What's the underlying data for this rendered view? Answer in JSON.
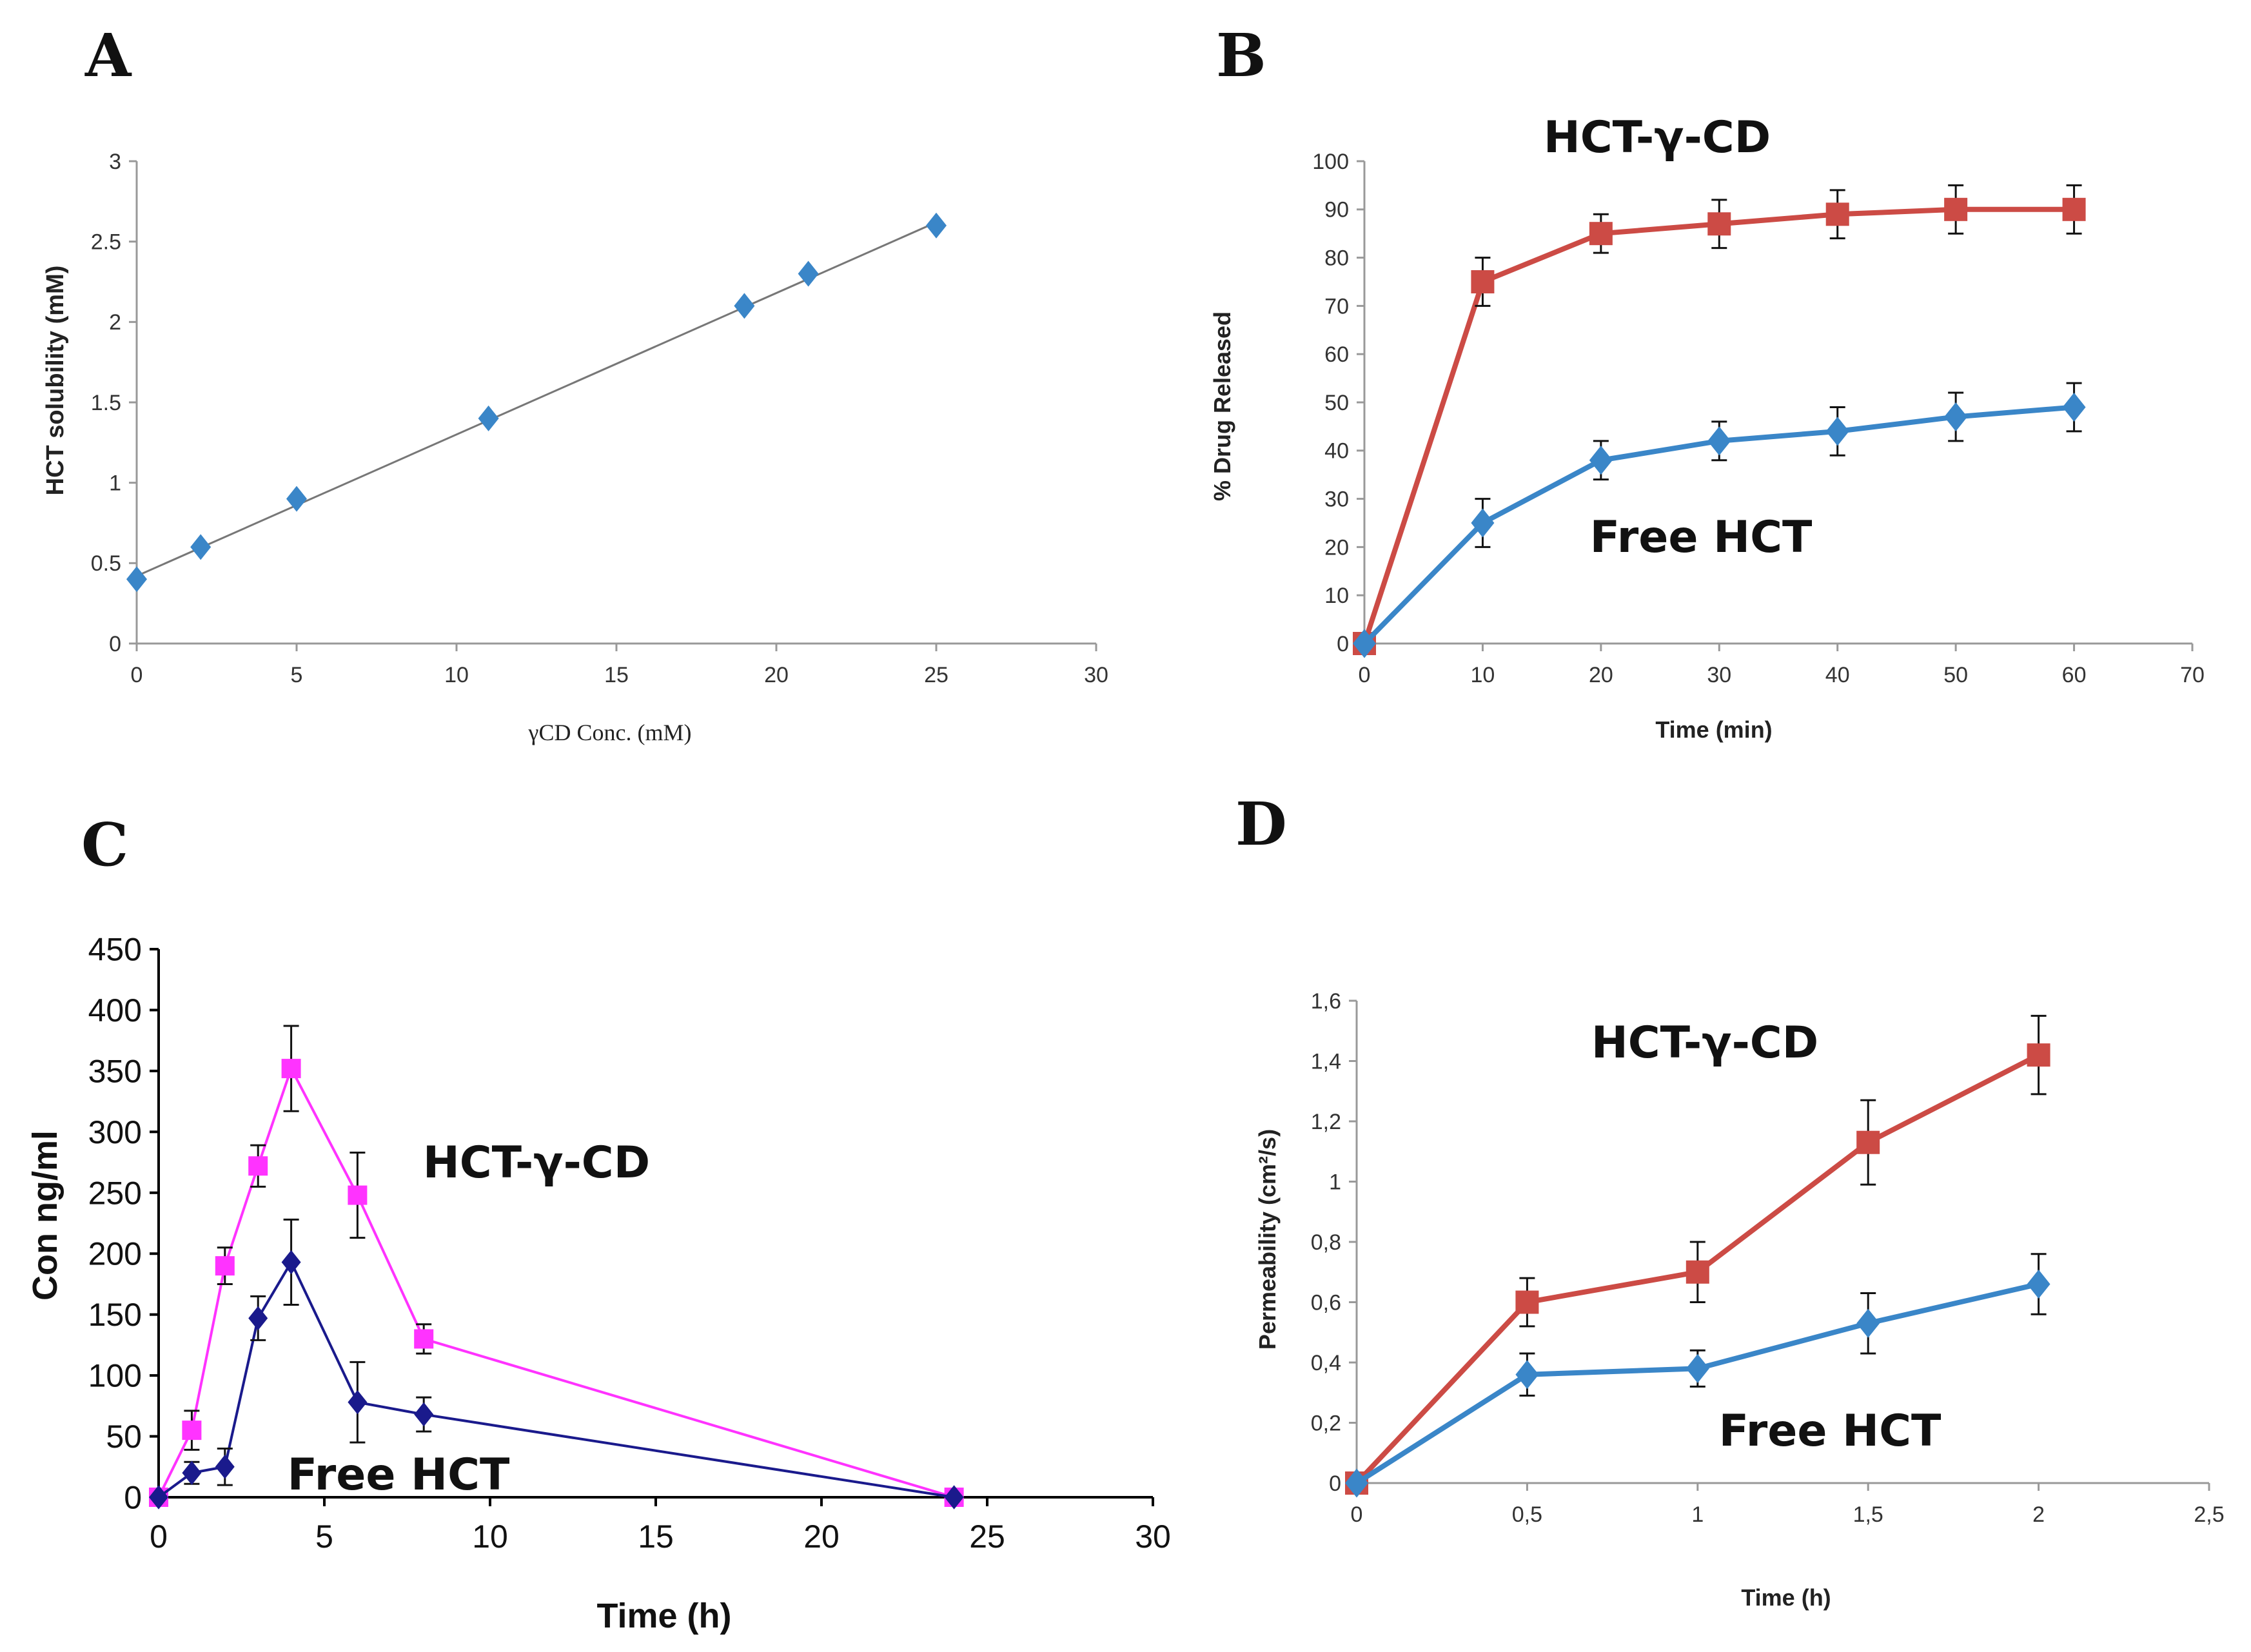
{
  "figure": {
    "panels": [
      "A",
      "B",
      "C",
      "D"
    ]
  },
  "colors": {
    "blue": "#3a86c8",
    "red": "#cc4b45",
    "magenta": "#ff33ff",
    "navy": "#1a1a8c",
    "regression": "#777777"
  },
  "chart_data": [
    {
      "panel": "A",
      "type": "scatter",
      "title": "",
      "xlabel": "γCD Conc. (mM)",
      "ylabel": "HCT solubility  (mM)",
      "xlim": [
        0,
        30
      ],
      "ylim": [
        0,
        3
      ],
      "xticks": [
        "0",
        "5",
        "10",
        "15",
        "20",
        "25",
        "30"
      ],
      "yticks": [
        "0",
        "0.5",
        "1",
        "1.5",
        "2",
        "2.5",
        "3"
      ],
      "series": [
        {
          "name": "HCT solubility",
          "marker": "diamond",
          "x": [
            0,
            2,
            5,
            11,
            19,
            21,
            25
          ],
          "y": [
            0.4,
            0.6,
            0.9,
            1.4,
            2.1,
            2.3,
            2.6
          ]
        }
      ],
      "trendline": {
        "x": [
          0,
          25
        ],
        "y": [
          0.42,
          2.62
        ]
      }
    },
    {
      "panel": "B",
      "type": "line",
      "title": "",
      "xlabel": "Time (min)",
      "ylabel": "% Drug Released",
      "xlim": [
        0,
        70
      ],
      "ylim": [
        0,
        100
      ],
      "xticks": [
        "0",
        "10",
        "20",
        "30",
        "40",
        "50",
        "60",
        "70"
      ],
      "yticks": [
        "0",
        "10",
        "20",
        "30",
        "40",
        "50",
        "60",
        "70",
        "80",
        "90",
        "100"
      ],
      "annotations": [
        "HCT-γ-CD",
        "Free HCT"
      ],
      "series": [
        {
          "name": "HCT-γ-CD",
          "marker": "square",
          "x": [
            0,
            10,
            20,
            30,
            40,
            50,
            60
          ],
          "y": [
            0,
            75,
            85,
            87,
            89,
            90,
            90
          ],
          "err": [
            0,
            5,
            4,
            5,
            5,
            5,
            5
          ]
        },
        {
          "name": "Free HCT",
          "marker": "diamond",
          "x": [
            0,
            10,
            20,
            30,
            40,
            50,
            60
          ],
          "y": [
            0,
            25,
            38,
            42,
            44,
            47,
            49
          ],
          "err": [
            0,
            5,
            4,
            4,
            5,
            5,
            5
          ]
        }
      ]
    },
    {
      "panel": "C",
      "type": "line",
      "title": "",
      "xlabel": "Time (h)",
      "ylabel": "Con ng/ml",
      "xlim": [
        0,
        30
      ],
      "ylim": [
        0,
        450
      ],
      "xticks": [
        "0",
        "5",
        "10",
        "15",
        "20",
        "25",
        "30"
      ],
      "yticks": [
        "0",
        "50",
        "100",
        "150",
        "200",
        "250",
        "300",
        "350",
        "400",
        "450"
      ],
      "annotations": [
        "HCT-γ-CD",
        "Free HCT"
      ],
      "series": [
        {
          "name": "HCT-γ-CD",
          "marker": "square",
          "x": [
            0,
            1,
            2,
            3,
            4,
            6,
            8,
            24
          ],
          "y": [
            0,
            55,
            190,
            272,
            352,
            248,
            130,
            0
          ],
          "err": [
            0,
            16,
            15,
            17,
            35,
            35,
            12,
            0
          ]
        },
        {
          "name": "Free HCT",
          "marker": "diamond",
          "x": [
            0,
            1,
            2,
            3,
            4,
            6,
            8,
            24
          ],
          "y": [
            0,
            20,
            25,
            147,
            193,
            78,
            68,
            0
          ],
          "err": [
            0,
            9,
            15,
            18,
            35,
            33,
            14,
            0
          ]
        }
      ]
    },
    {
      "panel": "D",
      "type": "line",
      "title": "",
      "xlabel": "Time (h)",
      "ylabel": "Permeability (cm²/s)",
      "xlim": [
        0,
        2.5
      ],
      "ylim": [
        0,
        1.6
      ],
      "xticks": [
        "0",
        "0,5",
        "1",
        "1,5",
        "2",
        "2,5"
      ],
      "yticks": [
        "0",
        "0,2",
        "0,4",
        "0,6",
        "0,8",
        "1",
        "1,2",
        "1,4",
        "1,6"
      ],
      "annotations": [
        "HCT-γ-CD",
        "Free HCT"
      ],
      "series": [
        {
          "name": "HCT-γ-CD",
          "marker": "square",
          "x": [
            0,
            0.5,
            1,
            1.5,
            2
          ],
          "y": [
            0,
            0.6,
            0.7,
            1.13,
            1.42
          ],
          "err": [
            0,
            0.08,
            0.1,
            0.14,
            0.13
          ]
        },
        {
          "name": "Free HCT",
          "marker": "diamond",
          "x": [
            0,
            0.5,
            1,
            1.5,
            2
          ],
          "y": [
            0,
            0.36,
            0.38,
            0.53,
            0.66
          ],
          "err": [
            0,
            0.07,
            0.06,
            0.1,
            0.1
          ]
        }
      ]
    }
  ]
}
